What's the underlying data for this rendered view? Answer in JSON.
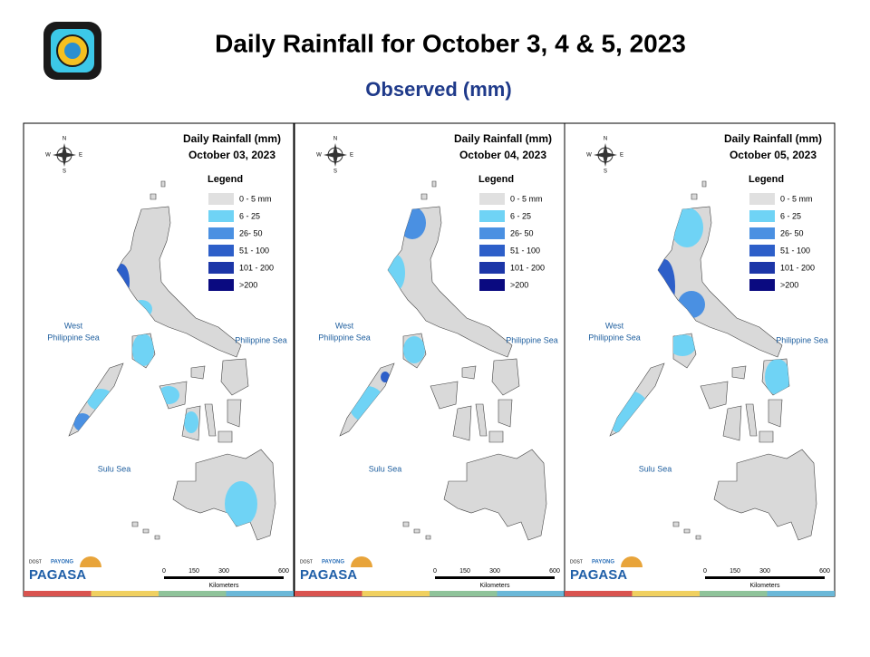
{
  "header": {
    "title": "Daily Rainfall for October 3, 4 & 5, 2023",
    "subtitle": "Observed (mm)"
  },
  "panels": [
    {
      "title": "Daily Rainfall (mm)",
      "date": "October 03, 2023"
    },
    {
      "title": "Daily Rainfall (mm)",
      "date": "October 04, 2023"
    },
    {
      "title": "Daily Rainfall (mm)",
      "date": "October 05, 2023"
    }
  ],
  "legend": {
    "title": "Legend",
    "items": [
      {
        "label": "0 - 5 mm",
        "color": "#e0e0e0"
      },
      {
        "label": "6 - 25",
        "color": "#6fd3f5"
      },
      {
        "label": "26- 50",
        "color": "#4a90e2"
      },
      {
        "label": "51 - 100",
        "color": "#2d5fc9"
      },
      {
        "label": "101 - 200",
        "color": "#1c36a8"
      },
      {
        "label": ">200",
        "color": "#0a0a80"
      }
    ]
  },
  "seas": {
    "west": [
      "West",
      "Philippine Sea"
    ],
    "east": "Philippine Sea",
    "south": "Sulu Sea"
  },
  "compass": {
    "n": "N",
    "s": "S",
    "e": "E",
    "w": "W"
  },
  "scale": {
    "ticks": [
      "0",
      "150",
      "300",
      "600"
    ],
    "unit": "Kilometers"
  },
  "branding": {
    "name": "PAGASA",
    "tag": "DOST",
    "program": "PAYONG"
  }
}
